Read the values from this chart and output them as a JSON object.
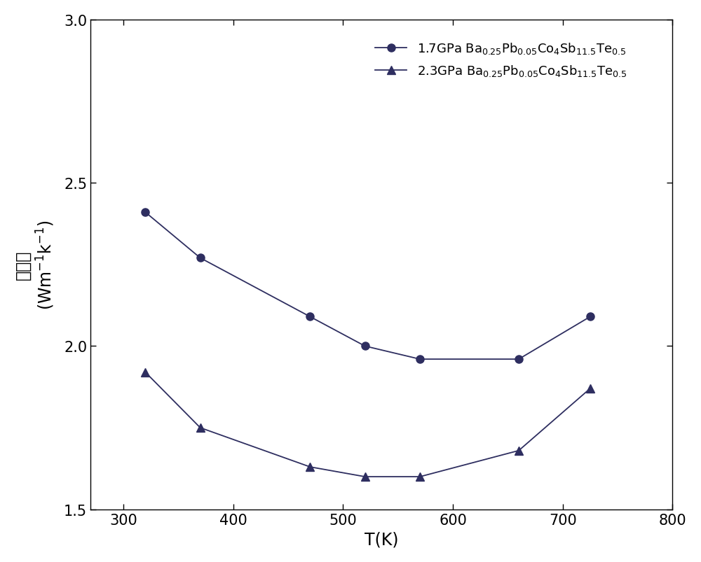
{
  "series1": {
    "label": "1.7GPa Ba$_{0.25}$Pb$_{0.05}$Co$_4$Sb$_{11.5}$Te$_{0.5}$",
    "x": [
      320,
      370,
      470,
      520,
      570,
      660,
      725
    ],
    "y": [
      2.41,
      2.27,
      2.09,
      2.0,
      1.96,
      1.96,
      2.09
    ],
    "marker": "o",
    "color": "#000000",
    "markersize": 8
  },
  "series2": {
    "label": "2.3GPa Ba$_{0.25}$Pb$_{0.05}$Co$_4$Sb$_{11.5}$Te$_{0.5}$",
    "x": [
      320,
      370,
      470,
      520,
      570,
      660,
      725
    ],
    "y": [
      1.92,
      1.75,
      1.63,
      1.6,
      1.6,
      1.68,
      1.87
    ],
    "marker": "^",
    "color": "#000000",
    "markersize": 9
  },
  "xlabel": "T(K)",
  "ylabel_chinese": "热导率",
  "ylabel_units": "(Wm$^{-1}$k$^{-1}$)",
  "xlim": [
    270,
    800
  ],
  "ylim": [
    1.5,
    3.0
  ],
  "xticks": [
    300,
    400,
    500,
    600,
    700,
    800
  ],
  "yticks": [
    1.5,
    2.0,
    2.5,
    3.0
  ],
  "background_color": "#ffffff",
  "linewidth": 1.3,
  "fontsize_axis_label": 17,
  "fontsize_tick": 15,
  "fontsize_legend": 13
}
